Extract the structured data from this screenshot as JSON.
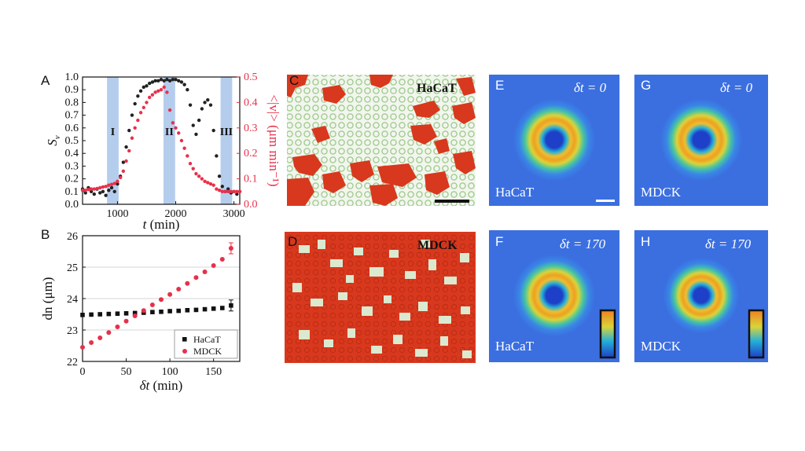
{
  "panels": {
    "A": "A",
    "B": "B",
    "C": "C",
    "D": "D",
    "E": "E",
    "F": "F",
    "G": "G",
    "H": "H"
  },
  "chart_data": [
    {
      "panel": "A",
      "type": "scatter",
      "xlabel_var": "t",
      "xlabel_unit": "(min)",
      "ylabel": "S",
      "ylabel_sub": "v",
      "y2label": "<|v|> (μm min⁻¹)",
      "xlim": [
        400,
        3100
      ],
      "ylim": [
        0,
        1.0
      ],
      "y2lim": [
        0,
        0.5
      ],
      "xticks": [
        1000,
        2000,
        3000
      ],
      "yticks": [
        0.0,
        0.1,
        0.2,
        0.3,
        0.4,
        0.5,
        0.6,
        0.7,
        0.8,
        0.9,
        1.0
      ],
      "yticklabels": [
        "0.0",
        "0.1",
        "0.2",
        "0.3",
        "0.4",
        "0.5",
        "0.6",
        "0.7",
        "0.8",
        "0.9",
        "1.0"
      ],
      "y2ticks": [
        0.0,
        0.1,
        0.2,
        0.3,
        0.4,
        0.5
      ],
      "y2ticklabels": [
        "0.0",
        "0.1",
        "0.2",
        "0.3",
        "0.4",
        "0.5"
      ],
      "bands": [
        {
          "label": "I",
          "from": 820,
          "to": 1020
        },
        {
          "label": "II",
          "from": 1790,
          "to": 1990
        },
        {
          "label": "III",
          "from": 2770,
          "to": 2970
        }
      ],
      "band_color": "#a8c4ea",
      "series": [
        {
          "axis": "left",
          "color": "#222222",
          "x": [
            400,
            450,
            500,
            550,
            600,
            650,
            700,
            750,
            800,
            850,
            900,
            950,
            1000,
            1050,
            1100,
            1150,
            1200,
            1250,
            1300,
            1350,
            1400,
            1450,
            1500,
            1550,
            1600,
            1650,
            1700,
            1750,
            1800,
            1850,
            1900,
            1950,
            2000,
            2050,
            2100,
            2150,
            2200,
            2250,
            2300,
            2350,
            2400,
            2450,
            2500,
            2550,
            2600,
            2650,
            2700,
            2750,
            2800,
            2850,
            2900,
            2950,
            3000,
            3050,
            3100
          ],
          "y": [
            0.12,
            0.09,
            0.13,
            0.1,
            0.08,
            0.12,
            0.09,
            0.1,
            0.07,
            0.11,
            0.13,
            0.1,
            0.16,
            0.22,
            0.33,
            0.45,
            0.58,
            0.7,
            0.79,
            0.85,
            0.89,
            0.92,
            0.93,
            0.95,
            0.96,
            0.97,
            0.97,
            0.98,
            0.97,
            0.98,
            0.97,
            0.98,
            0.98,
            0.97,
            0.96,
            0.94,
            0.9,
            0.78,
            0.62,
            0.55,
            0.66,
            0.75,
            0.8,
            0.82,
            0.78,
            0.58,
            0.38,
            0.22,
            0.14,
            0.1,
            0.12,
            0.09,
            0.1,
            0.08,
            0.1
          ]
        },
        {
          "axis": "right",
          "color": "#e8304a",
          "x": [
            400,
            450,
            500,
            550,
            600,
            650,
            700,
            750,
            800,
            850,
            900,
            950,
            1000,
            1050,
            1100,
            1150,
            1200,
            1250,
            1300,
            1350,
            1400,
            1450,
            1500,
            1550,
            1600,
            1650,
            1700,
            1750,
            1800,
            1850,
            1900,
            1950,
            2000,
            2050,
            2100,
            2150,
            2200,
            2250,
            2300,
            2350,
            2400,
            2450,
            2500,
            2550,
            2600,
            2650,
            2700,
            2750,
            2800,
            2850,
            2900,
            2950,
            3000,
            3050,
            3100
          ],
          "y": [
            0.055,
            0.055,
            0.058,
            0.06,
            0.06,
            0.062,
            0.065,
            0.068,
            0.07,
            0.075,
            0.078,
            0.082,
            0.09,
            0.105,
            0.13,
            0.17,
            0.21,
            0.26,
            0.3,
            0.33,
            0.36,
            0.38,
            0.4,
            0.42,
            0.43,
            0.44,
            0.445,
            0.45,
            0.46,
            0.44,
            0.37,
            0.32,
            0.3,
            0.28,
            0.25,
            0.22,
            0.19,
            0.16,
            0.14,
            0.12,
            0.11,
            0.1,
            0.09,
            0.085,
            0.08,
            0.075,
            0.06,
            0.055,
            0.05,
            0.05,
            0.05,
            0.05,
            0.05,
            0.05,
            0.05
          ]
        }
      ]
    },
    {
      "panel": "B",
      "type": "scatter",
      "xlabel_var": "δt",
      "xlabel_unit": "(min)",
      "ylabel": "dn (μm)",
      "xlim": [
        0,
        180
      ],
      "ylim": [
        22,
        26
      ],
      "xticks": [
        0,
        50,
        100,
        150
      ],
      "yticks": [
        22,
        23,
        24,
        25,
        26
      ],
      "legend_position": "bottom-right",
      "series": [
        {
          "name": "HaCaT",
          "color": "#111111",
          "marker": "square",
          "x": [
            0,
            10,
            20,
            30,
            40,
            50,
            60,
            70,
            80,
            90,
            100,
            110,
            120,
            130,
            140,
            150,
            160,
            170
          ],
          "y": [
            23.48,
            23.49,
            23.5,
            23.51,
            23.52,
            23.53,
            23.54,
            23.55,
            23.57,
            23.58,
            23.6,
            23.61,
            23.63,
            23.64,
            23.66,
            23.68,
            23.7,
            23.78
          ]
        },
        {
          "name": "MDCK",
          "color": "#e8304a",
          "marker": "circle",
          "x": [
            0,
            10,
            20,
            30,
            40,
            50,
            60,
            70,
            80,
            90,
            100,
            110,
            120,
            130,
            140,
            150,
            160,
            170
          ],
          "y": [
            22.45,
            22.6,
            22.75,
            22.92,
            23.1,
            23.28,
            23.45,
            23.62,
            23.8,
            23.97,
            24.13,
            24.3,
            24.48,
            24.67,
            24.85,
            25.05,
            25.25,
            25.6
          ]
        }
      ]
    }
  ],
  "images": {
    "C": {
      "label": "HaCaT"
    },
    "D": {
      "label": "MDCK"
    },
    "E": {
      "dt_label": "δt = 0",
      "cell_label": "HaCaT"
    },
    "G": {
      "dt_label": "δt = 0",
      "cell_label": "MDCK"
    },
    "F": {
      "dt_label": "δt = 170",
      "cell_label": "HaCaT"
    },
    "H": {
      "dt_label": "δt = 170",
      "cell_label": "MDCK"
    }
  },
  "colors": {
    "heatmap_bg": "#3b6fe0",
    "tissue_red": "#d8381d",
    "cell_green": "#b8d8a0"
  }
}
